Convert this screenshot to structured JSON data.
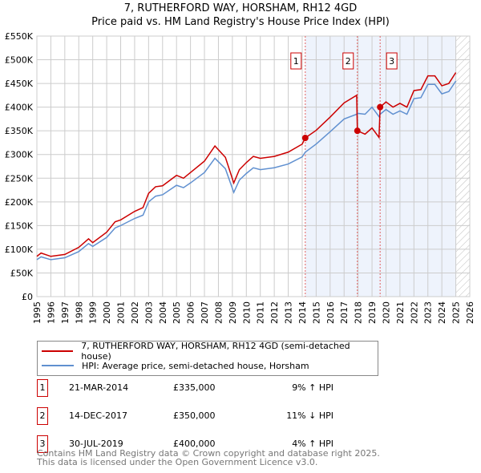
{
  "chart_data": {
    "type": "line",
    "title": "7, RUTHERFORD WAY, HORSHAM, RH12 4GD",
    "subtitle": "Price paid vs. HM Land Registry's House Price Index (HPI)",
    "xlim": [
      1995,
      2026
    ],
    "ylim": [
      0,
      550000
    ],
    "x_ticks": [
      "1995",
      "1996",
      "1997",
      "1998",
      "1999",
      "2000",
      "2001",
      "2002",
      "2003",
      "2004",
      "2005",
      "2006",
      "2007",
      "2008",
      "2009",
      "2010",
      "2011",
      "2012",
      "2013",
      "2014",
      "2015",
      "2016",
      "2017",
      "2018",
      "2019",
      "2020",
      "2021",
      "2022",
      "2023",
      "2024",
      "2025",
      "2026"
    ],
    "y_ticks": [
      {
        "v": 0,
        "label": "£0"
      },
      {
        "v": 50000,
        "label": "£50K"
      },
      {
        "v": 100000,
        "label": "£100K"
      },
      {
        "v": 150000,
        "label": "£150K"
      },
      {
        "v": 200000,
        "label": "£200K"
      },
      {
        "v": 250000,
        "label": "£250K"
      },
      {
        "v": 300000,
        "label": "£300K"
      },
      {
        "v": 350000,
        "label": "£350K"
      },
      {
        "v": 400000,
        "label": "£400K"
      },
      {
        "v": 450000,
        "label": "£450K"
      },
      {
        "v": 500000,
        "label": "£500K"
      },
      {
        "v": 550000,
        "label": "£550K"
      }
    ],
    "grid": true,
    "shaded_region": [
      2014.22,
      2025.0
    ],
    "forecast_hatch": [
      2025.0,
      2026
    ],
    "series": [
      {
        "name": "7, RUTHERFORD WAY, HORSHAM, RH12 4GD (semi-detached house)",
        "color": "#cc0000",
        "x": [
          1995,
          1995.3,
          1996,
          1997,
          1998,
          1998.7,
          1999,
          2000,
          2000.6,
          2001,
          2002,
          2002.6,
          2003,
          2003.5,
          2004,
          2005,
          2005.5,
          2006,
          2007,
          2007.75,
          2008.5,
          2009.1,
          2009.5,
          2010,
          2010.5,
          2011,
          2012,
          2013,
          2014,
          2014.22,
          2015,
          2016,
          2017,
          2017.9,
          2017.95,
          2018.5,
          2019,
          2019.5,
          2019.58,
          2020,
          2020.5,
          2021,
          2021.5,
          2022,
          2022.5,
          2023,
          2023.5,
          2024,
          2024.5,
          2025
        ],
        "y": [
          85000,
          92000,
          85000,
          89000,
          104000,
          122000,
          114000,
          136000,
          158000,
          162000,
          180000,
          188000,
          218000,
          232000,
          234000,
          256000,
          250000,
          262000,
          286000,
          318000,
          294000,
          240000,
          268000,
          283000,
          296000,
          292000,
          296000,
          305000,
          322000,
          335000,
          351000,
          379000,
          409000,
          425000,
          350000,
          343000,
          356000,
          336000,
          400000,
          411000,
          400000,
          408000,
          400000,
          435000,
          437000,
          466000,
          466000,
          445000,
          450000,
          473000
        ]
      },
      {
        "name": "HPI: Average price, semi-detached house, Horsham",
        "color": "#6090d0",
        "x": [
          1995,
          1995.3,
          1996,
          1997,
          1998,
          1998.7,
          1999,
          2000,
          2000.6,
          2001,
          2002,
          2002.6,
          2003,
          2003.5,
          2004,
          2005,
          2005.5,
          2006,
          2007,
          2007.75,
          2008.5,
          2009.1,
          2009.5,
          2010,
          2010.5,
          2011,
          2012,
          2013,
          2014,
          2014.22,
          2015,
          2016,
          2017,
          2017.9,
          2017.95,
          2018.5,
          2019,
          2019.5,
          2019.58,
          2020,
          2020.5,
          2021,
          2021.5,
          2022,
          2022.5,
          2023,
          2023.5,
          2024,
          2024.5,
          2025
        ],
        "y": [
          78000,
          84000,
          78000,
          82000,
          95000,
          112000,
          106000,
          125000,
          145000,
          150000,
          165000,
          172000,
          200000,
          212000,
          215000,
          235000,
          230000,
          240000,
          262000,
          292000,
          270000,
          220000,
          246000,
          260000,
          272000,
          268000,
          272000,
          280000,
          295000,
          305000,
          322000,
          348000,
          375000,
          385000,
          387000,
          385000,
          400000,
          380000,
          385000,
          395000,
          385000,
          392000,
          385000,
          418000,
          420000,
          448000,
          448000,
          428000,
          433000,
          455000
        ]
      }
    ],
    "sales": [
      {
        "label": "1",
        "x": 2014.22,
        "y": 335000,
        "date": "21-MAR-2014",
        "price": "£335,000",
        "hpi": "9% ↑ HPI"
      },
      {
        "label": "2",
        "x": 2017.95,
        "y": 350000,
        "date": "14-DEC-2017",
        "price": "£350,000",
        "hpi": "11% ↓ HPI"
      },
      {
        "label": "3",
        "x": 2019.58,
        "y": 400000,
        "date": "30-JUL-2019",
        "price": "£400,000",
        "hpi": "4% ↑ HPI"
      }
    ]
  },
  "footer": {
    "line1": "Contains HM Land Registry data © Crown copyright and database right 2025.",
    "line2": "This data is licensed under the Open Government Licence v3.0."
  }
}
